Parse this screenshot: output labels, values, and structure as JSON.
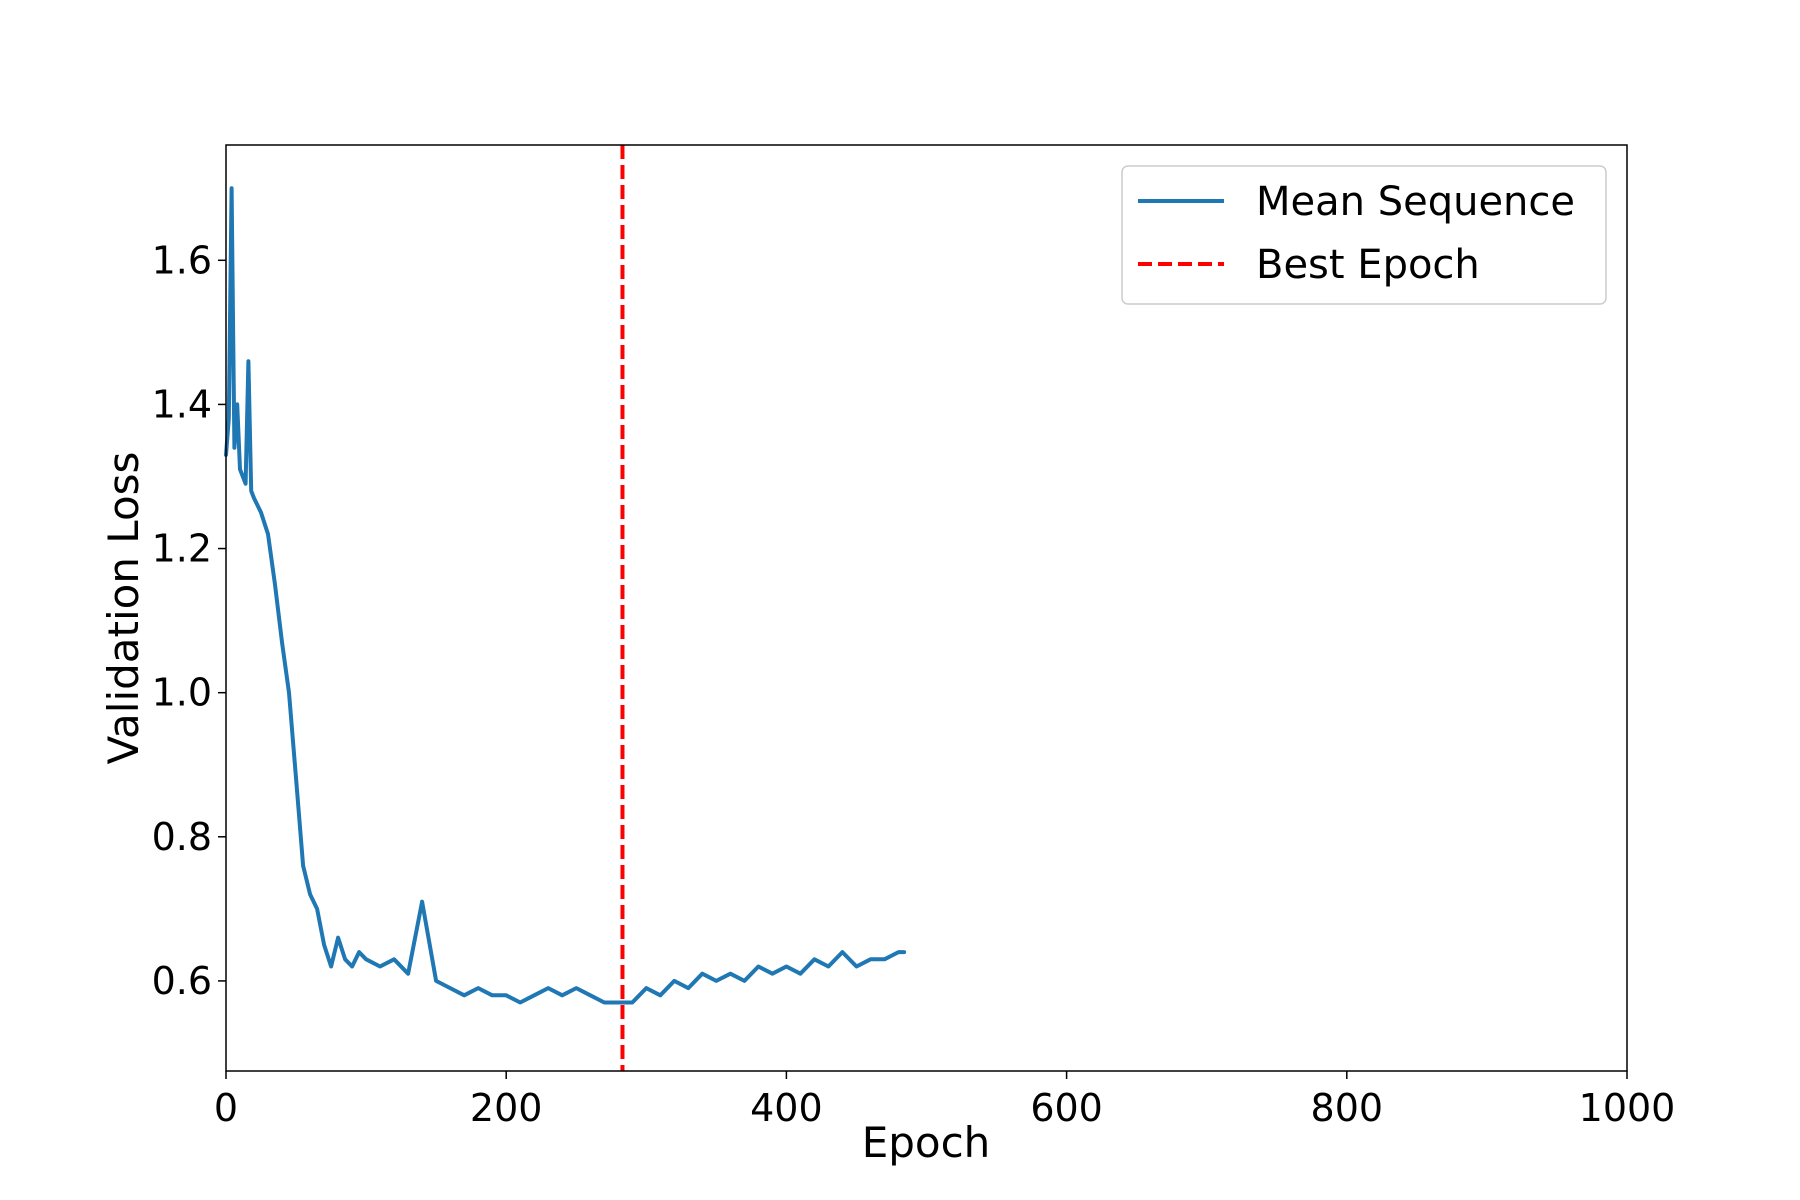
{
  "chart_data": {
    "type": "line",
    "xlabel": "Epoch",
    "ylabel": "Validation Loss",
    "xlim": [
      0,
      1000
    ],
    "ylim": [
      0.475,
      1.76
    ],
    "x_ticks": [
      0,
      200,
      400,
      600,
      800,
      1000
    ],
    "y_ticks": [
      0.6,
      0.8,
      1.0,
      1.2,
      1.4,
      1.6
    ],
    "x_tick_labels": [
      "0",
      "200",
      "400",
      "600",
      "800",
      "1000"
    ],
    "y_tick_labels": [
      "0.6",
      "0.8",
      "1.0",
      "1.2",
      "1.4",
      "1.6"
    ],
    "grid": false,
    "legend_position": "top-right",
    "series": [
      {
        "name": "Mean Sequence",
        "color": "#1f77b4",
        "style": "solid",
        "x": [
          0,
          2,
          4,
          6,
          8,
          10,
          12,
          14,
          16,
          18,
          20,
          25,
          30,
          35,
          40,
          45,
          50,
          55,
          60,
          65,
          70,
          75,
          80,
          85,
          90,
          95,
          100,
          110,
          120,
          130,
          140,
          150,
          160,
          170,
          180,
          190,
          200,
          210,
          220,
          230,
          240,
          250,
          260,
          270,
          280,
          290,
          300,
          310,
          320,
          330,
          340,
          350,
          360,
          370,
          380,
          390,
          400,
          410,
          420,
          430,
          440,
          450,
          460,
          470,
          480,
          484
        ],
        "values": [
          1.33,
          1.38,
          1.7,
          1.34,
          1.4,
          1.31,
          1.3,
          1.29,
          1.46,
          1.28,
          1.27,
          1.25,
          1.22,
          1.15,
          1.07,
          1.0,
          0.88,
          0.76,
          0.72,
          0.7,
          0.65,
          0.62,
          0.66,
          0.63,
          0.62,
          0.64,
          0.63,
          0.62,
          0.63,
          0.61,
          0.71,
          0.6,
          0.59,
          0.58,
          0.59,
          0.58,
          0.58,
          0.57,
          0.58,
          0.59,
          0.58,
          0.59,
          0.58,
          0.57,
          0.57,
          0.57,
          0.59,
          0.58,
          0.6,
          0.59,
          0.61,
          0.6,
          0.61,
          0.6,
          0.62,
          0.61,
          0.62,
          0.61,
          0.63,
          0.62,
          0.64,
          0.62,
          0.63,
          0.63,
          0.64,
          0.64
        ]
      },
      {
        "name": "Best Epoch",
        "color": "#ff0000",
        "style": "dashed",
        "vline_x": 283
      }
    ]
  }
}
